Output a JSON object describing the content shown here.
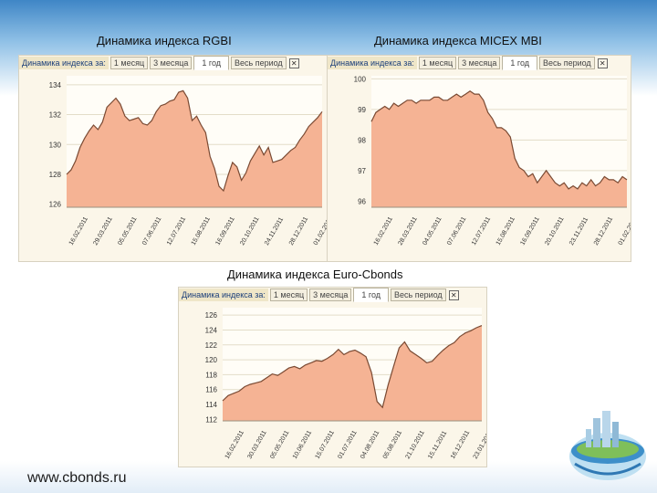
{
  "site": "www.cbonds.ru",
  "charts": [
    {
      "title": "Динамика индекса RGBI",
      "toolbar": {
        "label": "Динамика индекса за:",
        "tabs": [
          "1 месяц",
          "3 месяца",
          "1 год",
          "Весь период"
        ],
        "active": 2
      },
      "colors": {
        "fill": "#f5b394",
        "line": "#7a4a33"
      },
      "chart_data": {
        "type": "area",
        "y_ticks": [
          134,
          132,
          130,
          128,
          126
        ],
        "ylim": [
          125.8,
          134.6
        ],
        "x_labels": [
          "16.02.2011",
          "29.03.2011",
          "05.05.2011",
          "07.06.2011",
          "12.07.2011",
          "15.08.2011",
          "16.09.2011",
          "20.10.2011",
          "24.11.2011",
          "28.12.2011",
          "01.02.2012"
        ],
        "values": [
          128.0,
          128.3,
          128.9,
          129.8,
          130.4,
          130.9,
          131.3,
          131.0,
          131.5,
          132.5,
          132.8,
          133.1,
          132.7,
          131.9,
          131.6,
          131.7,
          131.8,
          131.4,
          131.3,
          131.6,
          132.2,
          132.6,
          132.7,
          132.9,
          133.0,
          133.5,
          133.6,
          133.1,
          131.6,
          131.9,
          131.3,
          130.8,
          129.2,
          128.4,
          127.2,
          126.9,
          127.9,
          128.8,
          128.5,
          127.6,
          128.1,
          128.9,
          129.4,
          129.9,
          129.3,
          129.8,
          128.8,
          128.9,
          129.0,
          129.3,
          129.6,
          129.8,
          130.3,
          130.7,
          131.2,
          131.5,
          131.8,
          132.2
        ]
      }
    },
    {
      "title": "Динамика индекса MICEX MBI",
      "toolbar": {
        "label": "Динамика индекса за:",
        "tabs": [
          "1 месяц",
          "3 месяца",
          "1 год",
          "Весь период"
        ],
        "active": 2
      },
      "colors": {
        "fill": "#f5b394",
        "line": "#7a4a33"
      },
      "chart_data": {
        "type": "area",
        "y_ticks": [
          100,
          99,
          98,
          97,
          96
        ],
        "ylim": [
          95.8,
          100.1
        ],
        "x_labels": [
          "16.02.2011",
          "28.03.2011",
          "04.05.2011",
          "07.06.2011",
          "12.07.2011",
          "15.08.2011",
          "16.09.2011",
          "20.10.2011",
          "23.11.2011",
          "28.12.2011",
          "01.02.2012"
        ],
        "values": [
          98.6,
          98.9,
          99.0,
          99.1,
          99.0,
          99.2,
          99.1,
          99.2,
          99.3,
          99.3,
          99.2,
          99.3,
          99.3,
          99.3,
          99.4,
          99.4,
          99.3,
          99.3,
          99.4,
          99.5,
          99.4,
          99.5,
          99.6,
          99.5,
          99.5,
          99.3,
          98.9,
          98.7,
          98.4,
          98.4,
          98.3,
          98.1,
          97.4,
          97.1,
          97.0,
          96.8,
          96.9,
          96.6,
          96.8,
          97.0,
          96.8,
          96.6,
          96.5,
          96.6,
          96.4,
          96.5,
          96.4,
          96.6,
          96.5,
          96.7,
          96.5,
          96.6,
          96.8,
          96.7,
          96.7,
          96.6,
          96.8,
          96.7
        ]
      }
    },
    {
      "title": "Динамика индекса Euro-Cbonds",
      "toolbar": {
        "label": "Динамика индекса за:",
        "tabs": [
          "1 месяц",
          "3 месяца",
          "1 год",
          "Весь период"
        ],
        "active": 2
      },
      "colors": {
        "fill": "#f5b394",
        "line": "#7a4a33"
      },
      "chart_data": {
        "type": "area",
        "y_ticks": [
          126,
          124,
          122,
          120,
          118,
          116,
          114,
          112
        ],
        "ylim": [
          111.8,
          127
        ],
        "x_labels": [
          "16.02.2011",
          "30.03.2011",
          "05.05.2011",
          "10.06.2011",
          "15.07.2011",
          "01.07.2011",
          "04.08.2011",
          "05.08.2011",
          "21.10.2011",
          "15.11.2011",
          "16.12.2011",
          "23.01.2012"
        ],
        "values": [
          114.5,
          115.2,
          115.5,
          115.8,
          116.4,
          116.7,
          116.9,
          117.1,
          117.6,
          118.1,
          117.9,
          118.4,
          118.9,
          119.1,
          118.8,
          119.3,
          119.6,
          119.9,
          119.8,
          120.2,
          120.7,
          121.4,
          120.7,
          121.1,
          121.3,
          120.9,
          120.4,
          118.3,
          114.4,
          113.6,
          116.6,
          119.1,
          121.6,
          122.4,
          121.2,
          120.7,
          120.2,
          119.6,
          119.8,
          120.6,
          121.3,
          121.9,
          122.3,
          123.1,
          123.6,
          123.9,
          124.3,
          124.6
        ]
      }
    }
  ]
}
